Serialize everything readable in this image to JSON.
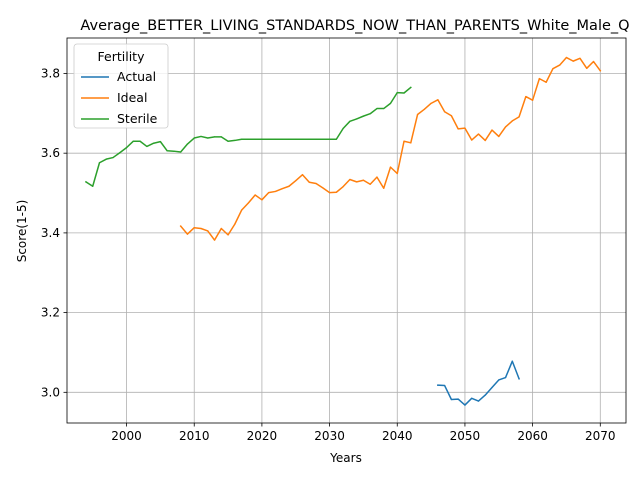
{
  "chart_data": {
    "type": "line",
    "title": "Average_BETTER_LIVING_STANDARDS_NOW_THAN_PARENTS_White_Male_Q",
    "xlabel": "Years",
    "ylabel": "Score(1-5)",
    "xlim": [
      1991.2,
      2073.8
    ],
    "ylim": [
      2.923,
      3.889
    ],
    "xticks": [
      2000,
      2010,
      2020,
      2030,
      2040,
      2050,
      2060,
      2070
    ],
    "yticks": [
      3.0,
      3.2,
      3.4,
      3.6,
      3.8
    ],
    "ytick_labels": [
      "3.0",
      "3.2",
      "3.4",
      "3.6",
      "3.8"
    ],
    "grid": true,
    "legend": {
      "title": "Fertility",
      "position": "top-left"
    },
    "series": [
      {
        "name": "Actual",
        "color": "#1f77b4",
        "x": [
          2046,
          2047,
          2048,
          2049,
          2050,
          2051,
          2052,
          2053,
          2054,
          2055,
          2056,
          2057,
          2058
        ],
        "y": [
          3.018,
          3.017,
          2.982,
          2.983,
          2.968,
          2.985,
          2.978,
          2.993,
          3.012,
          3.031,
          3.037,
          3.078,
          3.034
        ]
      },
      {
        "name": "Ideal",
        "color": "#ff7f0e",
        "x": [
          2008,
          2009,
          2010,
          2011,
          2012,
          2013,
          2014,
          2015,
          2016,
          2017,
          2018,
          2019,
          2020,
          2021,
          2022,
          2023,
          2024,
          2025,
          2026,
          2027,
          2028,
          2029,
          2030,
          2031,
          2032,
          2033,
          2034,
          2035,
          2036,
          2037,
          2038,
          2039,
          2040,
          2041,
          2042,
          2043,
          2044,
          2045,
          2046,
          2047,
          2048,
          2049,
          2050,
          2051,
          2052,
          2053,
          2054,
          2055,
          2056,
          2057,
          2058,
          2059,
          2060,
          2061,
          2062,
          2063,
          2064,
          2065,
          2066,
          2067,
          2068,
          2069,
          2070
        ],
        "y": [
          3.417,
          3.397,
          3.413,
          3.411,
          3.405,
          3.382,
          3.411,
          3.395,
          3.422,
          3.457,
          3.475,
          3.495,
          3.483,
          3.501,
          3.504,
          3.511,
          3.517,
          3.531,
          3.546,
          3.527,
          3.524,
          3.513,
          3.501,
          3.502,
          3.516,
          3.534,
          3.528,
          3.532,
          3.522,
          3.54,
          3.512,
          3.565,
          3.549,
          3.63,
          3.626,
          3.697,
          3.71,
          3.725,
          3.734,
          3.704,
          3.694,
          3.661,
          3.663,
          3.633,
          3.648,
          3.632,
          3.658,
          3.642,
          3.666,
          3.681,
          3.691,
          3.742,
          3.733,
          3.787,
          3.778,
          3.812,
          3.821,
          3.84,
          3.831,
          3.838,
          3.813,
          3.83,
          3.807
        ]
      },
      {
        "name": "Sterile",
        "color": "#2ca02c",
        "x": [
          1994,
          1995,
          1996,
          1997,
          1998,
          1999,
          2000,
          2001,
          2002,
          2003,
          2004,
          2005,
          2006,
          2007,
          2008,
          2009,
          2010,
          2011,
          2012,
          2013,
          2014,
          2015,
          2016,
          2017,
          2018,
          2019,
          2020,
          2021,
          2022,
          2023,
          2024,
          2025,
          2026,
          2027,
          2028,
          2029,
          2030,
          2031,
          2032,
          2033,
          2034,
          2035,
          2036,
          2037,
          2038,
          2039,
          2040,
          2041,
          2042
        ],
        "y": [
          3.528,
          3.517,
          3.576,
          3.585,
          3.589,
          3.601,
          3.614,
          3.63,
          3.63,
          3.617,
          3.625,
          3.629,
          3.606,
          3.605,
          3.603,
          3.623,
          3.638,
          3.642,
          3.638,
          3.641,
          3.641,
          3.63,
          3.632,
          3.635,
          3.635,
          3.635,
          3.635,
          3.635,
          3.635,
          3.635,
          3.635,
          3.635,
          3.635,
          3.635,
          3.635,
          3.635,
          3.635,
          3.635,
          3.662,
          3.68,
          3.686,
          3.693,
          3.699,
          3.712,
          3.712,
          3.725,
          3.752,
          3.751,
          3.765
        ]
      }
    ]
  }
}
